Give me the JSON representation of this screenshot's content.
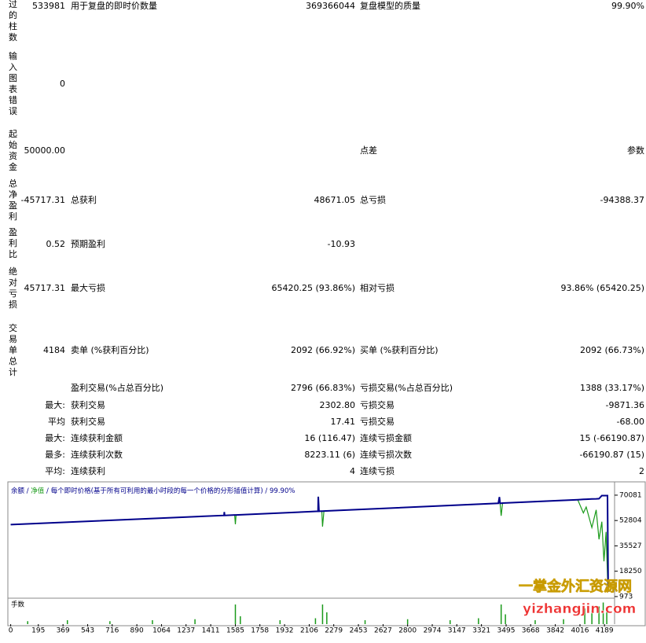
{
  "report": {
    "rows": [
      {
        "side": "过的柱数",
        "value1": "533981",
        "label2": "用于复盘的即时价数量",
        "value2": "369366044",
        "label3": "复盘模型的质量",
        "value3": "99.90%"
      },
      {
        "side": "输入图表错误",
        "value1": "0"
      },
      {
        "side": "起始资金",
        "value1": "50000.00",
        "label3": "点差",
        "value3": "参数"
      },
      {
        "side": "总净盈利",
        "value1": "-45717.31",
        "label2": "总获利",
        "value2": "48671.05",
        "label3": "总亏损",
        "value3": "-94388.37"
      },
      {
        "side": "盈利比",
        "value1": "0.52",
        "label2": "预期盈利",
        "value2": "-10.93"
      },
      {
        "side": "绝对亏损",
        "value1": "45717.31",
        "label2": "最大亏损",
        "value2": "65420.25 (93.86%)",
        "label3": "相对亏损",
        "value3": "93.86% (65420.25)"
      },
      {
        "side": "交易单总计",
        "value1": "4184",
        "label2": "卖单 (%获利百分比)",
        "value2": "2092 (66.92%)",
        "label3": "买单 (%获利百分比)",
        "value3": "2092 (66.73%)"
      },
      {
        "label2": "盈利交易(%占总百分比)",
        "value2": "2796 (66.83%)",
        "label3": "亏损交易(%占总百分比)",
        "value3": "1388 (33.17%)"
      },
      {
        "value1": "最大:",
        "label2": "获利交易",
        "value2": "2302.80",
        "label3": "亏损交易",
        "value3": "-9871.36"
      },
      {
        "value1": "平均",
        "label2": "获利交易",
        "value2": "17.41",
        "label3": "亏损交易",
        "value3": "-68.00"
      },
      {
        "value1": "最大:",
        "label2": "连续获利金额",
        "value2": "16 (116.47)",
        "label3": "连续亏损金额",
        "value3": "15 (-66190.87)"
      },
      {
        "value1": "最多:",
        "label2": "连续获利次数",
        "value2": "8223.11 (6)",
        "label3": "连续亏损次数",
        "value3": "-66190.87 (15)"
      },
      {
        "value1": "平均:",
        "label2": "连续获利",
        "value2": "4",
        "label3": "连续亏损",
        "value3": "2"
      }
    ]
  },
  "chart_data": {
    "type": "line",
    "legend_separator": " / ",
    "model_note": "每个即时价格(基于所有可利用的最小时段的每一个价格的分形插值计算)",
    "quality": "99.90%",
    "x": [
      0,
      1000,
      1505,
      1507,
      1509,
      1580,
      1585,
      1590,
      2100,
      2168,
      2170,
      2175,
      2195,
      2200,
      2210,
      3440,
      3448,
      3452,
      3460,
      3470,
      4000,
      4040,
      4060,
      4100,
      4130,
      4150,
      4170,
      4185,
      4200,
      4210,
      4215
    ],
    "series": [
      {
        "name": "净值",
        "color": "#1a9a1a",
        "values": [
          50000,
          54200,
          56300,
          58600,
          56300,
          56600,
          50200,
          56600,
          58800,
          59100,
          69000,
          59100,
          59200,
          48600,
          59300,
          64500,
          68800,
          64600,
          56000,
          64700,
          67000,
          58000,
          62000,
          48000,
          60000,
          40000,
          52000,
          25000,
          45000,
          15000,
          4283
        ]
      },
      {
        "name": "余额",
        "color": "#00008b",
        "values": [
          50000,
          54200,
          56300,
          58600,
          56300,
          56600,
          56600,
          56600,
          58800,
          59100,
          69000,
          59100,
          59200,
          59200,
          59300,
          64500,
          68800,
          64600,
          64600,
          64700,
          67000,
          67200,
          67300,
          67500,
          67600,
          67700,
          69800,
          69800,
          69800,
          69800,
          4283
        ]
      }
    ],
    "xlim": [
      -20,
      4260
    ],
    "ylim": [
      400,
      75400
    ],
    "xticks": [
      0,
      195,
      369,
      543,
      716,
      890,
      1064,
      1237,
      1411,
      1585,
      1758,
      1932,
      2106,
      2279,
      2453,
      2627,
      2800,
      2974,
      3147,
      3321,
      3495,
      3668,
      3842,
      4016,
      4189
    ],
    "yticks": [
      70081,
      52804,
      35527,
      18250,
      973
    ],
    "lots": {
      "name": "手数",
      "color": "#1a9a1a",
      "ylim": [
        0,
        1.2
      ],
      "x": [
        120,
        400,
        700,
        1000,
        1300,
        1585,
        1620,
        1900,
        2150,
        2200,
        2230,
        2500,
        2800,
        3100,
        3300,
        3460,
        3490,
        3700,
        3900,
        4050,
        4100,
        4150,
        4180,
        4205
      ],
      "values": [
        0.15,
        0.2,
        0.15,
        0.2,
        0.25,
        1.0,
        0.4,
        0.2,
        0.3,
        1.0,
        0.6,
        0.2,
        0.25,
        0.2,
        0.3,
        1.0,
        0.5,
        0.2,
        0.25,
        0.8,
        0.7,
        0.9,
        1.1,
        0.6
      ]
    }
  },
  "watermark": {
    "name": "一掌金外汇资源网",
    "url": "yizhangjin.com"
  }
}
